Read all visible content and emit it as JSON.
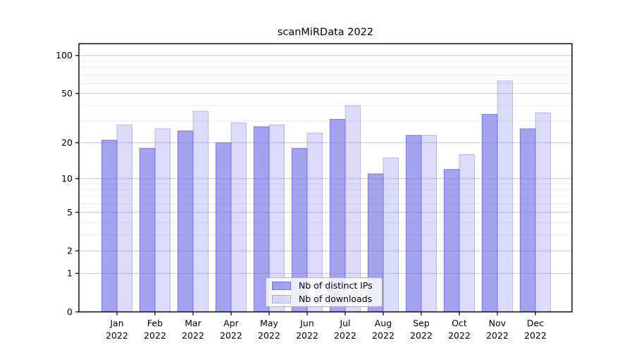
{
  "title": "scanMiRData 2022",
  "chart_data": {
    "type": "bar",
    "title": "scanMiRData 2022",
    "yscale": "log1p",
    "ylim": [
      0,
      124
    ],
    "xlabel": "",
    "ylabel": "",
    "categories": [
      "Jan",
      "Feb",
      "Mar",
      "Apr",
      "May",
      "Jun",
      "Jul",
      "Aug",
      "Sep",
      "Oct",
      "Nov",
      "Dec"
    ],
    "category_year": "2022",
    "series": [
      {
        "name": "Nb of distinct IPs",
        "fill": "rgba(102,102,230,0.6)",
        "edge": "rgba(102,102,230,0.78)",
        "values": [
          21,
          18,
          25,
          20,
          27,
          18,
          31,
          11,
          23,
          12,
          34,
          26
        ]
      },
      {
        "name": "Nb of downloads",
        "fill": "rgba(102,102,230,0.23)",
        "edge": "rgba(102,102,230,0.38)",
        "values": [
          28,
          26,
          36,
          29,
          28,
          24,
          40,
          15,
          23,
          16,
          63,
          35
        ]
      }
    ],
    "yticks": [
      100,
      50,
      20,
      10,
      5,
      2,
      1,
      0
    ],
    "ytick_labels": [
      "100",
      "50",
      "20",
      "10",
      "5",
      "2",
      "1",
      "0"
    ],
    "minor_gridlines": [
      3,
      4,
      6,
      7,
      8,
      9,
      30,
      40,
      60,
      70,
      80,
      90
    ],
    "grid": "horizontal",
    "legend_position": "lower center",
    "colors": {
      "major_grid": "#cccccc",
      "minor_grid": "#ededed",
      "axis": "#000000",
      "background": "#ffffff"
    }
  }
}
